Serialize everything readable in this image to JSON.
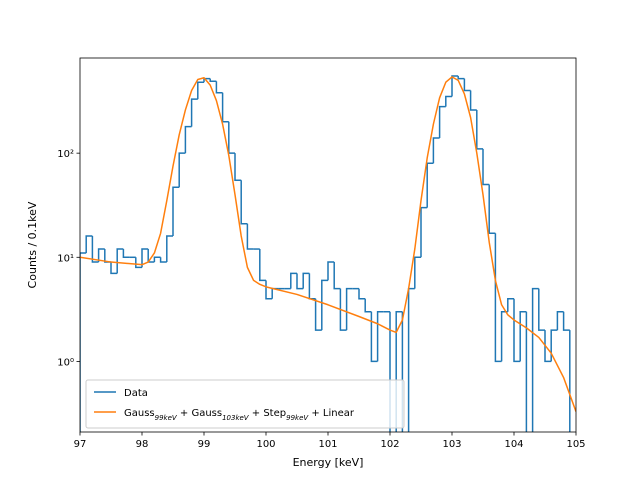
{
  "chart_data": {
    "type": "histogram_fit",
    "xlabel": "Energy [keV]",
    "ylabel": "Counts / 0.1keV",
    "xlim": [
      97,
      105
    ],
    "xticks": [
      97,
      98,
      99,
      100,
      101,
      102,
      103,
      104,
      105
    ],
    "ylim": [
      0.21,
      820
    ],
    "log_y": true,
    "yticks": [
      {
        "value": 1,
        "label": "10⁰"
      },
      {
        "value": 10,
        "label": "10¹"
      },
      {
        "value": 100,
        "label": "10²"
      }
    ],
    "legend": "lower left",
    "histogram": {
      "name": "Data",
      "color": "#1f77b4",
      "bins": [
        97.0,
        97.1,
        97.2,
        97.3,
        97.4,
        97.5,
        97.6,
        97.7,
        97.8,
        97.9,
        98.0,
        98.1,
        98.2,
        98.3,
        98.4,
        98.5,
        98.6,
        98.7,
        98.8,
        98.9,
        99.0,
        99.1,
        99.2,
        99.3,
        99.4,
        99.5,
        99.6,
        99.7,
        99.8,
        99.9,
        100.0,
        100.1,
        100.2,
        100.3,
        100.4,
        100.5,
        100.6,
        100.7,
        100.8,
        100.9,
        101.0,
        101.1,
        101.2,
        101.3,
        101.4,
        101.5,
        101.6,
        101.7,
        101.8,
        101.9,
        102.0,
        102.1,
        102.2,
        102.3,
        102.4,
        102.5,
        102.6,
        102.7,
        102.8,
        102.9,
        103.0,
        103.1,
        103.2,
        103.3,
        103.4,
        103.5,
        103.6,
        103.7,
        103.8,
        103.9,
        104.0,
        104.1,
        104.2,
        104.3,
        104.4,
        104.5,
        104.6,
        104.7,
        104.8,
        104.9,
        105.0
      ],
      "values": [
        11,
        16,
        9,
        12,
        9,
        7,
        12,
        10,
        10,
        8,
        12,
        9,
        10,
        9,
        16,
        47,
        100,
        180,
        330,
        480,
        520,
        490,
        380,
        200,
        100,
        55,
        21,
        12,
        12,
        6,
        4,
        5,
        5,
        5,
        7,
        5,
        7,
        4,
        2,
        6,
        9,
        5,
        2,
        5,
        5,
        4,
        3,
        1,
        3,
        3,
        0,
        3,
        0,
        5,
        10,
        30,
        80,
        140,
        280,
        350,
        550,
        520,
        400,
        260,
        110,
        50,
        17,
        1,
        3,
        4,
        1,
        3,
        0,
        5,
        2,
        1,
        2,
        3,
        2,
        0
      ]
    },
    "series": [
      {
        "name": "Gauss99keV + Gauss103keV + Step99keV + Linear",
        "color": "#ff7f0e",
        "x": [
          97.0,
          97.5,
          98.0,
          98.1,
          98.2,
          98.3,
          98.4,
          98.5,
          98.6,
          98.7,
          98.8,
          98.9,
          99.0,
          99.1,
          99.2,
          99.3,
          99.4,
          99.5,
          99.6,
          99.7,
          99.8,
          99.9,
          100.0,
          100.5,
          101.0,
          101.5,
          101.8,
          102.0,
          102.1,
          102.2,
          102.3,
          102.4,
          102.5,
          102.6,
          102.7,
          102.8,
          102.9,
          103.0,
          103.1,
          103.2,
          103.3,
          103.4,
          103.5,
          103.6,
          103.7,
          103.8,
          103.9,
          104.0,
          104.2,
          104.4,
          104.6,
          104.8,
          105.0
        ],
        "values": [
          10,
          9,
          8.5,
          9,
          11,
          17,
          35,
          75,
          150,
          260,
          400,
          510,
          530,
          450,
          320,
          190,
          95,
          40,
          16,
          8,
          6,
          5.5,
          5.2,
          4.4,
          3.5,
          2.7,
          2.3,
          2.0,
          1.9,
          2.5,
          5,
          12,
          35,
          90,
          190,
          340,
          480,
          540,
          500,
          370,
          220,
          100,
          40,
          14,
          6,
          3.5,
          2.8,
          2.5,
          2.1,
          1.7,
          1.2,
          0.7,
          0.33
        ]
      }
    ]
  }
}
